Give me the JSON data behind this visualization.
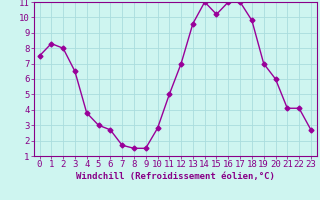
{
  "x": [
    0,
    1,
    2,
    3,
    4,
    5,
    6,
    7,
    8,
    9,
    10,
    11,
    12,
    13,
    14,
    15,
    16,
    17,
    18,
    19,
    20,
    21,
    22,
    23
  ],
  "y": [
    7.5,
    8.3,
    8.0,
    6.5,
    3.8,
    3.0,
    2.7,
    1.7,
    1.5,
    1.5,
    2.8,
    5.0,
    7.0,
    9.6,
    11.0,
    10.2,
    11.0,
    11.0,
    9.8,
    7.0,
    6.0,
    4.1,
    4.1,
    2.7
  ],
  "line_color": "#990099",
  "marker": "D",
  "marker_size": 2.5,
  "bg_color": "#cef5f0",
  "grid_color": "#aadddd",
  "xlabel": "Windchill (Refroidissement éolien,°C)",
  "xlabel_color": "#880088",
  "tick_color": "#880088",
  "xlim": [
    -0.5,
    23.5
  ],
  "ylim": [
    1,
    11
  ],
  "yticks": [
    1,
    2,
    3,
    4,
    5,
    6,
    7,
    8,
    9,
    10,
    11
  ],
  "xticks": [
    0,
    1,
    2,
    3,
    4,
    5,
    6,
    7,
    8,
    9,
    10,
    11,
    12,
    13,
    14,
    15,
    16,
    17,
    18,
    19,
    20,
    21,
    22,
    23
  ],
  "font_size": 6.5,
  "spine_color": "#880088",
  "line_width": 1.0
}
